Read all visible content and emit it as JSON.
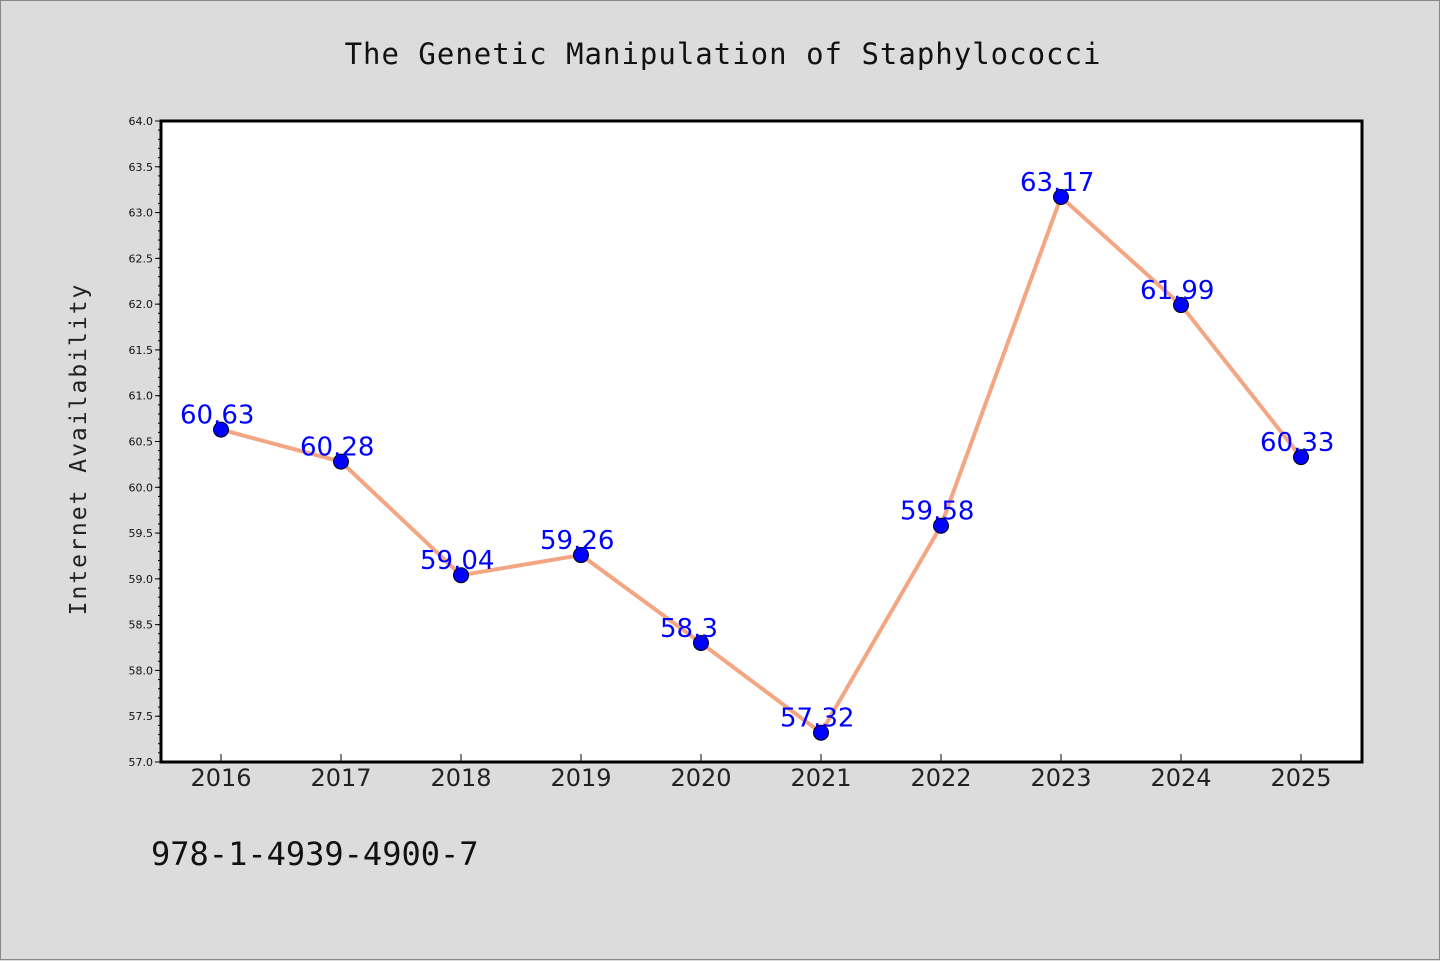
{
  "chart_data": {
    "type": "line",
    "title": "The Genetic Manipulation of Staphylococci",
    "xlabel": "",
    "ylabel": "Internet Availability",
    "categories": [
      "2016",
      "2017",
      "2018",
      "2019",
      "2020",
      "2021",
      "2022",
      "2023",
      "2024",
      "2025"
    ],
    "values": [
      60.63,
      60.28,
      59.04,
      59.26,
      58.3,
      57.32,
      59.58,
      63.17,
      61.99,
      60.33
    ],
    "data_labels": [
      "60.63",
      "60.28",
      "59.04",
      "59.26",
      "58.3",
      "57.32",
      "59.58",
      "63.17",
      "61.99",
      "60.33"
    ],
    "ylim": [
      57.0,
      64.0
    ],
    "yticks": [
      "57.0",
      "57.5",
      "58.0",
      "58.5",
      "59.0",
      "59.5",
      "60.0",
      "60.5",
      "61.0",
      "61.5",
      "62.0",
      "62.5",
      "63.0",
      "63.5",
      "64.0"
    ],
    "grid": false,
    "legend": "none",
    "colors": {
      "line": "#f4a582",
      "marker": "#0000ff",
      "label": "#0000ff"
    }
  },
  "footer_text": "978-1-4939-4900-7"
}
